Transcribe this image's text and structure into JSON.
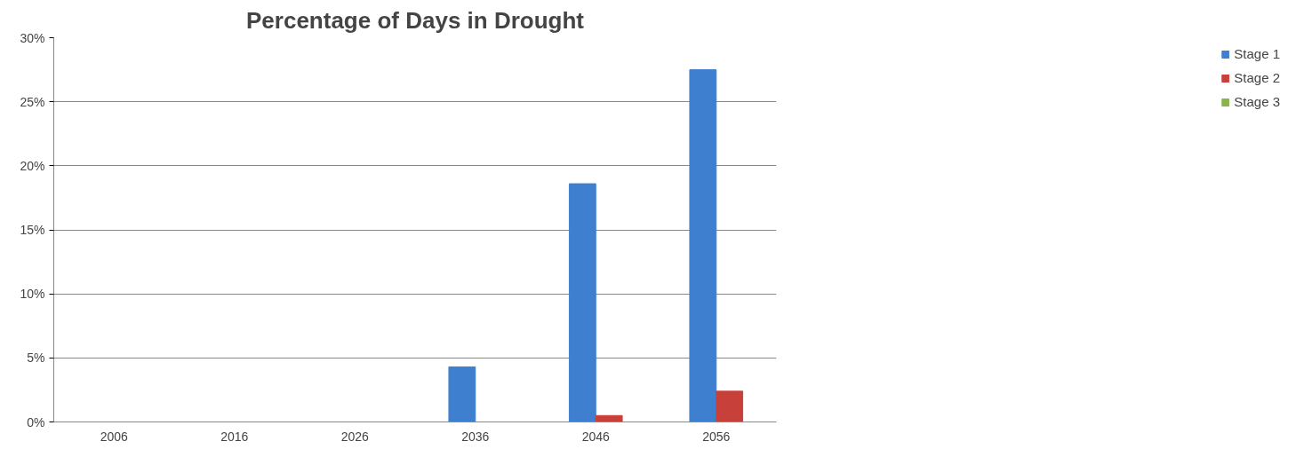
{
  "chart_data": {
    "type": "bar",
    "title": "Percentage of Days in Drought",
    "categories": [
      "2006",
      "2016",
      "2026",
      "2036",
      "2046",
      "2056"
    ],
    "series": [
      {
        "name": "Stage 1",
        "color": "#3f7fd0",
        "values": [
          0,
          0,
          0,
          4.3,
          18.6,
          27.5
        ]
      },
      {
        "name": "Stage 2",
        "color": "#c8403a",
        "values": [
          0,
          0,
          0,
          0,
          0.5,
          2.4
        ]
      },
      {
        "name": "Stage 3",
        "color": "#8ab44a",
        "values": [
          0,
          0,
          0,
          0,
          0,
          0
        ]
      }
    ],
    "ylim": [
      0,
      30
    ],
    "yticks": [
      {
        "value": 0,
        "label": "0%"
      },
      {
        "value": 5,
        "label": "5%"
      },
      {
        "value": 10,
        "label": "10%"
      },
      {
        "value": 15,
        "label": "15%"
      },
      {
        "value": 20,
        "label": "20%"
      },
      {
        "value": 25,
        "label": "25%"
      },
      {
        "value": 30,
        "label": "30%"
      }
    ],
    "grid": "y",
    "legend": "right"
  }
}
